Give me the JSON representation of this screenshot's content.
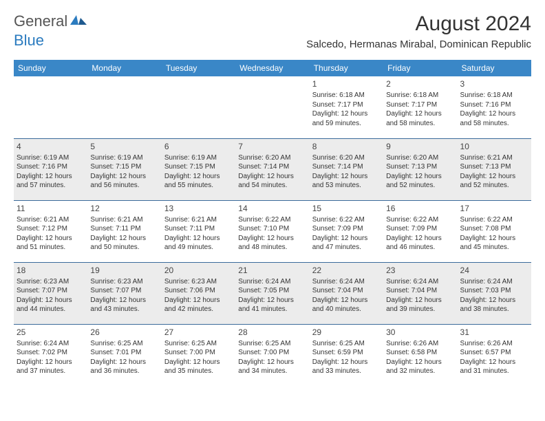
{
  "logo": {
    "text1": "General",
    "text2": "Blue"
  },
  "title": "August 2024",
  "location": "Salcedo, Hermanas Mirabal, Dominican Republic",
  "colors": {
    "header_bg": "#3a87c7",
    "header_text": "#ffffff",
    "row_border": "#3a6a9a",
    "shade_bg": "#ececec",
    "body_text": "#333333",
    "logo_gray": "#555555",
    "logo_blue": "#2b7bbf"
  },
  "day_headers": [
    "Sunday",
    "Monday",
    "Tuesday",
    "Wednesday",
    "Thursday",
    "Friday",
    "Saturday"
  ],
  "weeks": [
    {
      "shaded": false,
      "days": [
        null,
        null,
        null,
        null,
        {
          "n": "1",
          "sunrise": "6:18 AM",
          "sunset": "7:17 PM",
          "daylight": "12 hours and 59 minutes."
        },
        {
          "n": "2",
          "sunrise": "6:18 AM",
          "sunset": "7:17 PM",
          "daylight": "12 hours and 58 minutes."
        },
        {
          "n": "3",
          "sunrise": "6:18 AM",
          "sunset": "7:16 PM",
          "daylight": "12 hours and 58 minutes."
        }
      ]
    },
    {
      "shaded": true,
      "days": [
        {
          "n": "4",
          "sunrise": "6:19 AM",
          "sunset": "7:16 PM",
          "daylight": "12 hours and 57 minutes."
        },
        {
          "n": "5",
          "sunrise": "6:19 AM",
          "sunset": "7:15 PM",
          "daylight": "12 hours and 56 minutes."
        },
        {
          "n": "6",
          "sunrise": "6:19 AM",
          "sunset": "7:15 PM",
          "daylight": "12 hours and 55 minutes."
        },
        {
          "n": "7",
          "sunrise": "6:20 AM",
          "sunset": "7:14 PM",
          "daylight": "12 hours and 54 minutes."
        },
        {
          "n": "8",
          "sunrise": "6:20 AM",
          "sunset": "7:14 PM",
          "daylight": "12 hours and 53 minutes."
        },
        {
          "n": "9",
          "sunrise": "6:20 AM",
          "sunset": "7:13 PM",
          "daylight": "12 hours and 52 minutes."
        },
        {
          "n": "10",
          "sunrise": "6:21 AM",
          "sunset": "7:13 PM",
          "daylight": "12 hours and 52 minutes."
        }
      ]
    },
    {
      "shaded": false,
      "days": [
        {
          "n": "11",
          "sunrise": "6:21 AM",
          "sunset": "7:12 PM",
          "daylight": "12 hours and 51 minutes."
        },
        {
          "n": "12",
          "sunrise": "6:21 AM",
          "sunset": "7:11 PM",
          "daylight": "12 hours and 50 minutes."
        },
        {
          "n": "13",
          "sunrise": "6:21 AM",
          "sunset": "7:11 PM",
          "daylight": "12 hours and 49 minutes."
        },
        {
          "n": "14",
          "sunrise": "6:22 AM",
          "sunset": "7:10 PM",
          "daylight": "12 hours and 48 minutes."
        },
        {
          "n": "15",
          "sunrise": "6:22 AM",
          "sunset": "7:09 PM",
          "daylight": "12 hours and 47 minutes."
        },
        {
          "n": "16",
          "sunrise": "6:22 AM",
          "sunset": "7:09 PM",
          "daylight": "12 hours and 46 minutes."
        },
        {
          "n": "17",
          "sunrise": "6:22 AM",
          "sunset": "7:08 PM",
          "daylight": "12 hours and 45 minutes."
        }
      ]
    },
    {
      "shaded": true,
      "days": [
        {
          "n": "18",
          "sunrise": "6:23 AM",
          "sunset": "7:07 PM",
          "daylight": "12 hours and 44 minutes."
        },
        {
          "n": "19",
          "sunrise": "6:23 AM",
          "sunset": "7:07 PM",
          "daylight": "12 hours and 43 minutes."
        },
        {
          "n": "20",
          "sunrise": "6:23 AM",
          "sunset": "7:06 PM",
          "daylight": "12 hours and 42 minutes."
        },
        {
          "n": "21",
          "sunrise": "6:24 AM",
          "sunset": "7:05 PM",
          "daylight": "12 hours and 41 minutes."
        },
        {
          "n": "22",
          "sunrise": "6:24 AM",
          "sunset": "7:04 PM",
          "daylight": "12 hours and 40 minutes."
        },
        {
          "n": "23",
          "sunrise": "6:24 AM",
          "sunset": "7:04 PM",
          "daylight": "12 hours and 39 minutes."
        },
        {
          "n": "24",
          "sunrise": "6:24 AM",
          "sunset": "7:03 PM",
          "daylight": "12 hours and 38 minutes."
        }
      ]
    },
    {
      "shaded": false,
      "days": [
        {
          "n": "25",
          "sunrise": "6:24 AM",
          "sunset": "7:02 PM",
          "daylight": "12 hours and 37 minutes."
        },
        {
          "n": "26",
          "sunrise": "6:25 AM",
          "sunset": "7:01 PM",
          "daylight": "12 hours and 36 minutes."
        },
        {
          "n": "27",
          "sunrise": "6:25 AM",
          "sunset": "7:00 PM",
          "daylight": "12 hours and 35 minutes."
        },
        {
          "n": "28",
          "sunrise": "6:25 AM",
          "sunset": "7:00 PM",
          "daylight": "12 hours and 34 minutes."
        },
        {
          "n": "29",
          "sunrise": "6:25 AM",
          "sunset": "6:59 PM",
          "daylight": "12 hours and 33 minutes."
        },
        {
          "n": "30",
          "sunrise": "6:26 AM",
          "sunset": "6:58 PM",
          "daylight": "12 hours and 32 minutes."
        },
        {
          "n": "31",
          "sunrise": "6:26 AM",
          "sunset": "6:57 PM",
          "daylight": "12 hours and 31 minutes."
        }
      ]
    }
  ],
  "labels": {
    "sunrise_prefix": "Sunrise: ",
    "sunset_prefix": "Sunset: ",
    "daylight_prefix": "Daylight: "
  }
}
